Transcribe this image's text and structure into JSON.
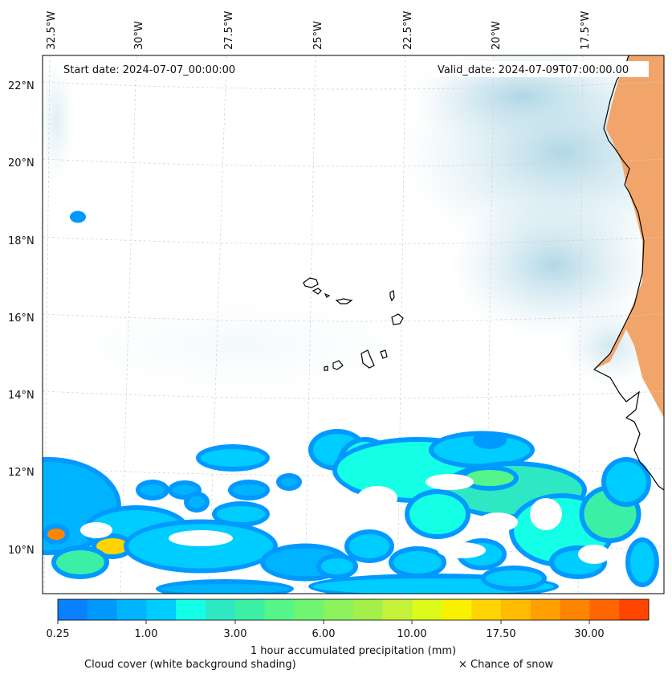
{
  "map": {
    "start_date": "Start date: 2024-07-07_00:00:00",
    "valid_date": "Valid_date: 2024-07-09T07:00:00.00",
    "lon_labels": [
      "32.5°W",
      "30°W",
      "27.5°W",
      "25°W",
      "22.5°W",
      "20°W",
      "17.5°W"
    ],
    "lat_labels": [
      "22°N",
      "20°N",
      "18°N",
      "16°N",
      "14°N",
      "12°N",
      "10°N"
    ],
    "layers": {
      "cloud_cover_color": "#bcdde9",
      "land_temperature_color": "#f2a56a",
      "coastline_color": "#000000",
      "gridline_color": "#cfcfcf"
    }
  },
  "colorbar": {
    "title": "1 hour accumulated precipitation (mm)",
    "tick_labels": [
      "0.25",
      "1.00",
      "3.00",
      "6.00",
      "10.00",
      "17.50",
      "30.00"
    ],
    "colors": [
      "#0a80ff",
      "#0099ff",
      "#00b3ff",
      "#00cdff",
      "#14ffe6",
      "#2ee8c3",
      "#3bf0a4",
      "#55f58a",
      "#6ff571",
      "#8bf25c",
      "#a3f04a",
      "#c4f23a",
      "#ddfb1a",
      "#f8f200",
      "#ffd400",
      "#ffbb00",
      "#ffa000",
      "#ff8400",
      "#ff6600",
      "#ff4400"
    ]
  },
  "legend_notes": {
    "cloud_cover": "Cloud cover (white background shading)",
    "snow": "× Chance of snow"
  }
}
